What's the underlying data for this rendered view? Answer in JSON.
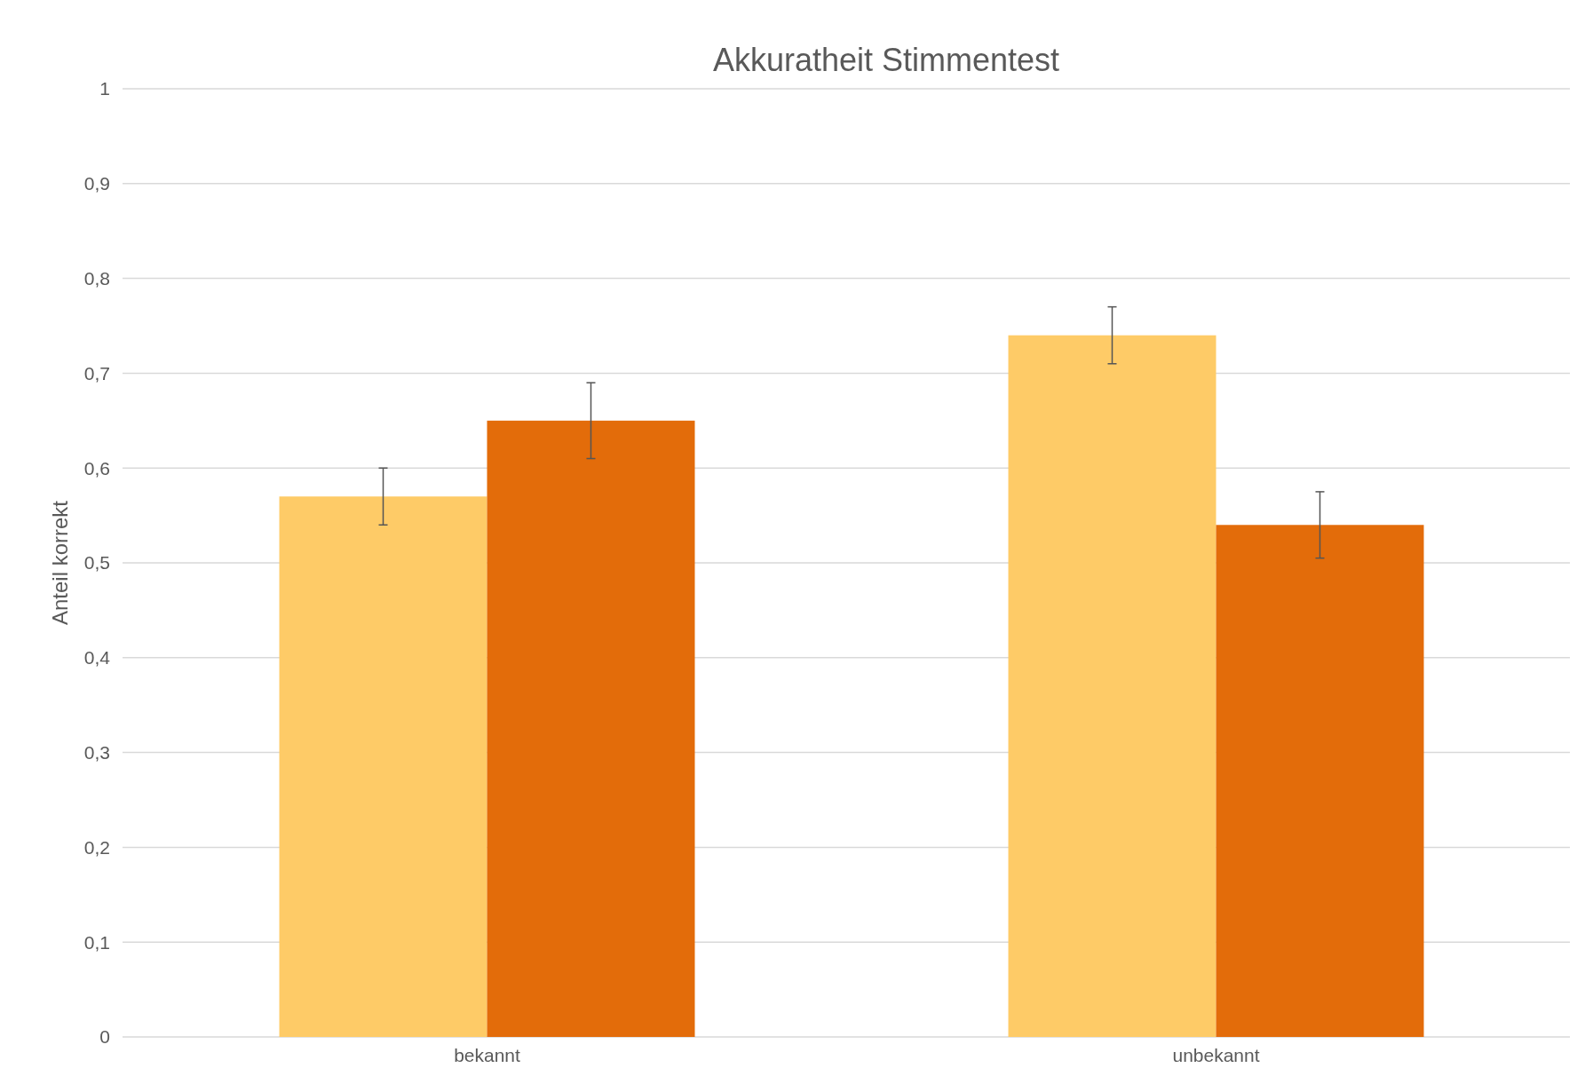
{
  "chart_data": {
    "type": "bar",
    "title": "Akkuratheit Stimmentest",
    "ylabel": "Anteil korrekt",
    "categories": [
      "bekannt",
      "unbekannt"
    ],
    "series": [
      {
        "color": "#fecb67",
        "values": [
          0.57,
          0.74
        ],
        "errors": [
          0.03,
          0.03
        ]
      },
      {
        "color": "#e36c0a",
        "values": [
          0.65,
          0.54
        ],
        "errors": [
          0.04,
          0.035
        ]
      }
    ],
    "ylim": [
      0,
      1
    ],
    "yticks": [
      0,
      {
        "value": 0.1,
        "label": "0,1"
      },
      {
        "value": 0.2,
        "label": "0,2"
      },
      {
        "value": 0.3,
        "label": "0,3"
      },
      {
        "value": 0.4,
        "label": "0,4"
      },
      {
        "value": 0.5,
        "label": "0,5"
      },
      {
        "value": 0.6,
        "label": "0,6"
      },
      {
        "value": 0.7,
        "label": "0,7"
      },
      {
        "value": 0.8,
        "label": "0,8"
      },
      {
        "value": 0.9,
        "label": "0,9"
      },
      1
    ],
    "grid": "y"
  }
}
